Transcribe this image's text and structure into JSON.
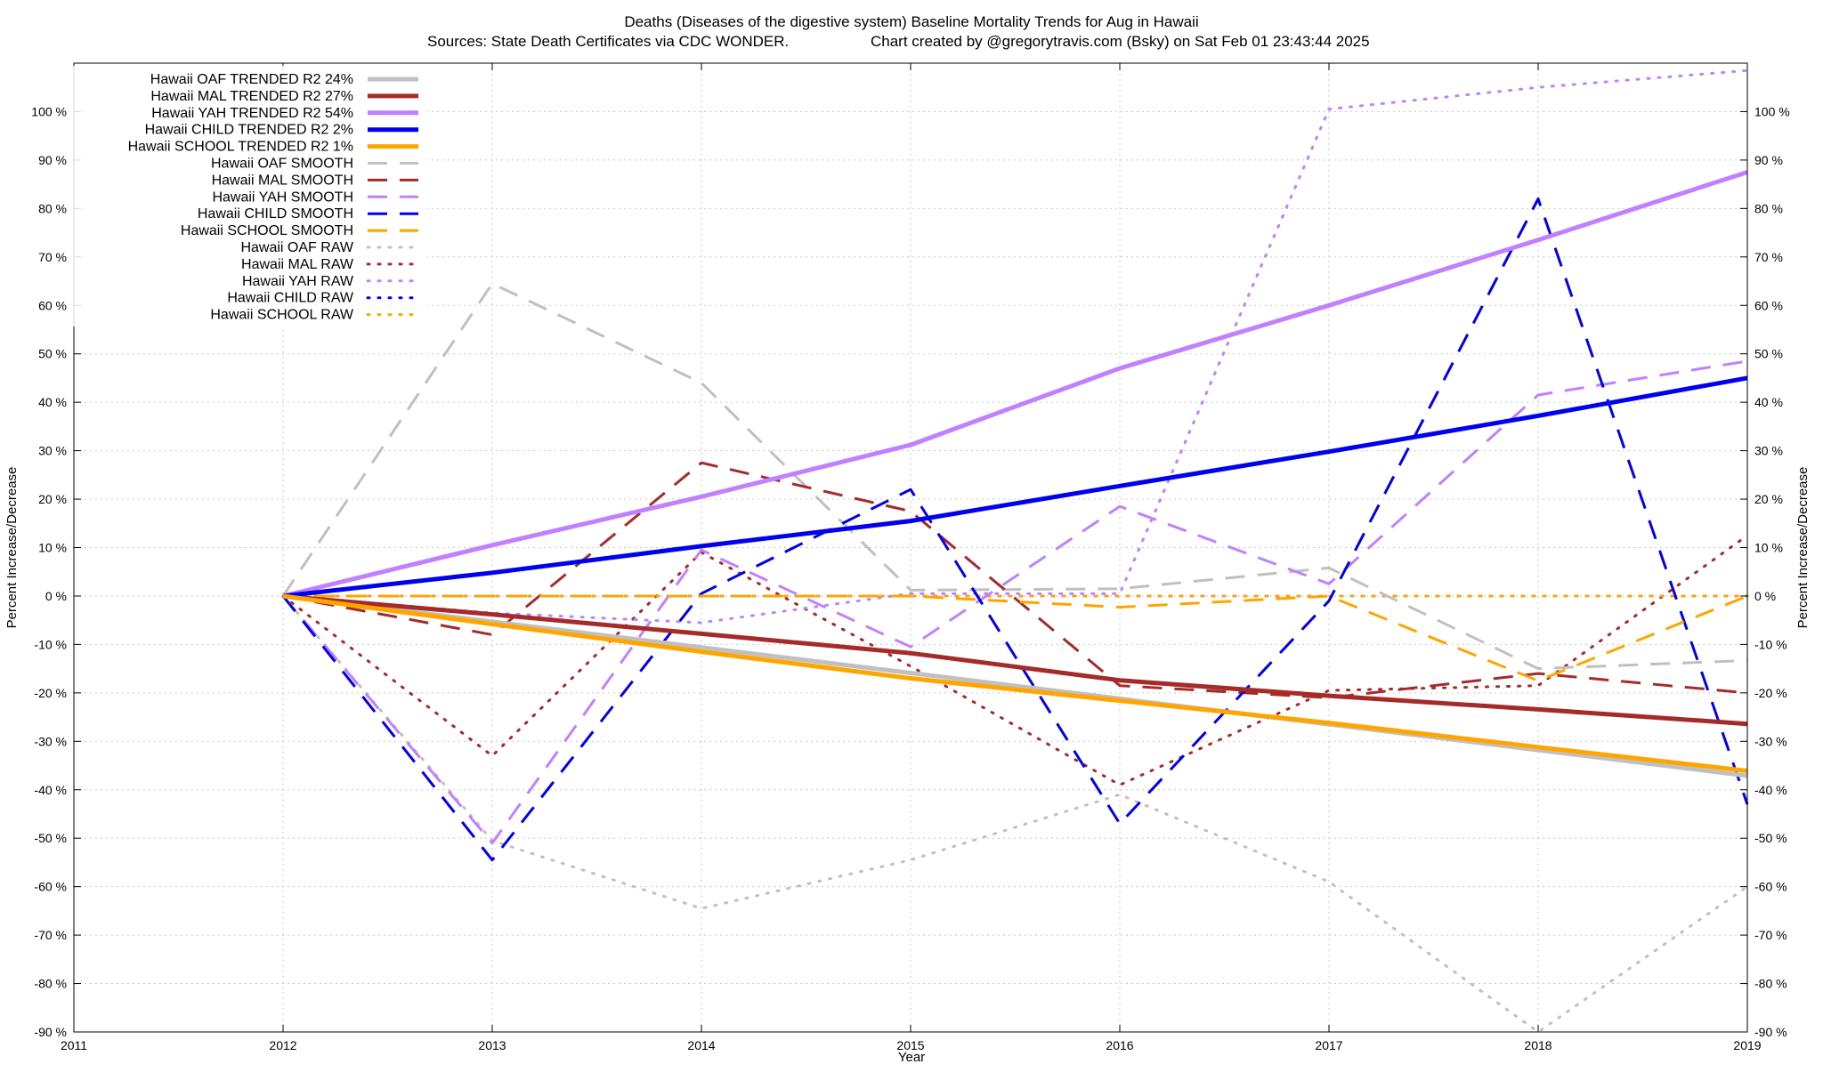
{
  "chart_data": {
    "type": "line",
    "title": "Deaths (Diseases of the digestive system)  Baseline Mortality Trends for Aug in Hawaii",
    "subtitle_left": "Sources: State Death Certificates via CDC WONDER.",
    "subtitle_right": "Chart created by @gregorytravis.com (Bsky) on Sat Feb 01 23:43:44 2025",
    "xlabel": "Year",
    "ylabel_left": "Percent Increase/Decrease",
    "ylabel_right": "Percent Increase/Decrease",
    "xlim": [
      2011,
      2019
    ],
    "ylim": [
      -90,
      110
    ],
    "x_ticks": [
      "2011",
      "2012",
      "2013",
      "2014",
      "2015",
      "2016",
      "2017",
      "2018",
      "2019"
    ],
    "y_ticks_left": [
      "-90 %",
      "-80 %",
      "-70 %",
      "-60 %",
      "-50 %",
      "-40 %",
      "-30 %",
      "-20 %",
      "-10 %",
      "0 %",
      "10 %",
      "20 %",
      "30 %",
      "40 %",
      "50 %",
      "60 %",
      "70 %",
      "80 %",
      "90 %",
      "100 %"
    ],
    "y_ticks_right": [
      "-90 %",
      "-80 %",
      "-70 %",
      "-60 %",
      "-50 %",
      "-40 %",
      "-30 %",
      "-20 %",
      "-10 %",
      "0 %",
      "10 %",
      "20 %",
      "30 %",
      "40 %",
      "50 %",
      "60 %",
      "70 %",
      "80 %",
      "90 %",
      "100 %"
    ],
    "grid": true,
    "legend_position": "top-left",
    "x": [
      2012,
      2013,
      2014,
      2015,
      2016,
      2017,
      2018,
      2019
    ],
    "series": [
      {
        "name": "Hawaii OAF TRENDED R2  24%",
        "style": "trend",
        "color": "#c0c0c0",
        "values": [
          0,
          -5.3,
          -10.6,
          -15.9,
          -21.2,
          -26.5,
          -31.8,
          -37.1
        ]
      },
      {
        "name": "Hawaii MAL TRENDED R2  27%",
        "style": "trend",
        "color": "#a52a2a",
        "values": [
          0,
          -3.8,
          -7.8,
          -11.8,
          -17.4,
          -20.6,
          -23.4,
          -26.4
        ]
      },
      {
        "name": "Hawaii YAH TRENDED R2  54%",
        "style": "trend",
        "color": "#c080ff",
        "values": [
          0,
          10.5,
          20.5,
          31.2,
          47,
          60,
          73.5,
          87.5
        ]
      },
      {
        "name": "Hawaii CHILD TRENDED R2   2%",
        "style": "trend",
        "color": "#0000ee",
        "values": [
          0,
          4.8,
          10.3,
          15.5,
          22.7,
          29.8,
          37.2,
          45
        ]
      },
      {
        "name": "Hawaii SCHOOL TRENDED R2   1%",
        "style": "trend",
        "color": "#ffa500",
        "values": [
          0,
          -5.8,
          -11.5,
          -17,
          -21.6,
          -26.2,
          -31.2,
          -36.1
        ]
      },
      {
        "name": "Hawaii OAF SMOOTH",
        "style": "smooth",
        "color": "#c0c0c0",
        "values": [
          0,
          64.5,
          44,
          1.2,
          1.5,
          5.8,
          -15,
          -13.3
        ]
      },
      {
        "name": "Hawaii MAL SMOOTH",
        "style": "smooth",
        "color": "#a52a2a",
        "values": [
          0,
          -8,
          27.5,
          17.5,
          -18.5,
          -21,
          -16,
          -20
        ]
      },
      {
        "name": "Hawaii YAH SMOOTH",
        "style": "smooth",
        "color": "#c080ff",
        "values": [
          0,
          -51,
          9.5,
          -10.5,
          18.5,
          2.5,
          41.5,
          48.5
        ]
      },
      {
        "name": "Hawaii CHILD SMOOTH",
        "style": "smooth",
        "color": "#0000ee",
        "values": [
          0,
          -54.5,
          0.5,
          22,
          -47,
          -1,
          82,
          -43
        ]
      },
      {
        "name": "Hawaii SCHOOL SMOOTH",
        "style": "smooth",
        "color": "#ffa500",
        "values": [
          0,
          0,
          0,
          0,
          -2.3,
          0,
          -17.5,
          0
        ]
      },
      {
        "name": "Hawaii OAF RAW",
        "style": "raw",
        "color": "#c0c0c0",
        "values": [
          0,
          -50.5,
          -64.5,
          -54.5,
          -41,
          -59,
          -90,
          -60
        ]
      },
      {
        "name": "Hawaii MAL RAW",
        "style": "raw",
        "color": "#a52a2a",
        "values": [
          0,
          -33,
          9,
          -14.5,
          -39,
          -19.5,
          -18.5,
          12.5
        ]
      },
      {
        "name": "Hawaii YAH RAW",
        "style": "raw",
        "color": "#c080ff",
        "values": [
          0,
          -3.5,
          -5.5,
          0.5,
          0.5,
          100.5,
          105,
          108.5
        ]
      },
      {
        "name": "Hawaii CHILD RAW",
        "style": "raw",
        "color": "#0000ee",
        "values": [
          0,
          0,
          0,
          0,
          0,
          0,
          0,
          0
        ]
      },
      {
        "name": "Hawaii SCHOOL RAW",
        "style": "raw",
        "color": "#ffa500",
        "values": [
          0,
          0,
          0,
          0,
          0,
          0,
          0,
          0
        ]
      }
    ]
  }
}
